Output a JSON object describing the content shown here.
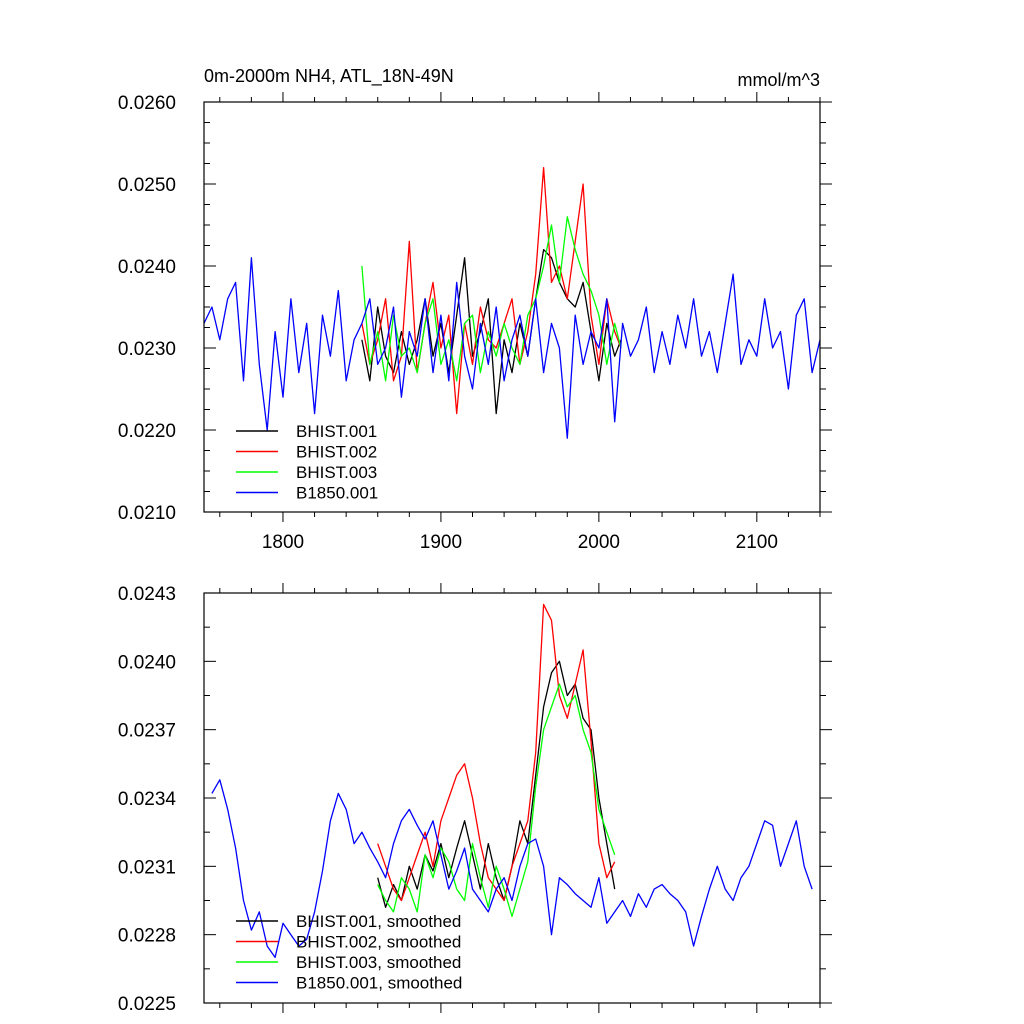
{
  "chart_data": [
    {
      "type": "line",
      "title": "0m-2000m NH4, ATL_18N-49N",
      "units": "mmol/m^3",
      "xlabel": "",
      "ylabel": "",
      "xlim": [
        1750,
        2140
      ],
      "ylim": [
        0.021,
        0.026
      ],
      "xticks": [
        1800,
        1900,
        2000,
        2100
      ],
      "xtick_labels": [
        "1800",
        "1900",
        "2000",
        "2100"
      ],
      "yticks": [
        0.021,
        0.022,
        0.023,
        0.024,
        0.025,
        0.026
      ],
      "ytick_labels": [
        "0.0210",
        "0.0220",
        "0.0230",
        "0.0240",
        "0.0250",
        "0.0260"
      ],
      "legend_position": "bottom-left",
      "series": [
        {
          "name": "BHIST.001",
          "color": "#000000",
          "x": [
            1850,
            1855,
            1860,
            1865,
            1870,
            1875,
            1880,
            1885,
            1890,
            1895,
            1900,
            1905,
            1910,
            1915,
            1920,
            1925,
            1930,
            1935,
            1940,
            1945,
            1950,
            1955,
            1960,
            1965,
            1970,
            1975,
            1980,
            1985,
            1990,
            1995,
            2000,
            2005,
            2010,
            2014
          ],
          "y": [
            0.0231,
            0.0226,
            0.0235,
            0.0229,
            0.0227,
            0.0232,
            0.0228,
            0.0231,
            0.0236,
            0.0229,
            0.0233,
            0.0227,
            0.0234,
            0.0241,
            0.0229,
            0.0232,
            0.0236,
            0.0222,
            0.0231,
            0.0227,
            0.0233,
            0.0229,
            0.0236,
            0.0242,
            0.0241,
            0.0238,
            0.0236,
            0.0235,
            0.0238,
            0.0232,
            0.0226,
            0.0233,
            0.0229,
            0.0231
          ]
        },
        {
          "name": "BHIST.002",
          "color": "#ff0000",
          "x": [
            1850,
            1855,
            1860,
            1865,
            1870,
            1875,
            1880,
            1885,
            1890,
            1895,
            1900,
            1905,
            1910,
            1915,
            1920,
            1925,
            1930,
            1935,
            1940,
            1945,
            1950,
            1955,
            1960,
            1965,
            1970,
            1975,
            1980,
            1985,
            1990,
            1995,
            2000,
            2005,
            2010,
            2014
          ],
          "y": [
            0.0233,
            0.0228,
            0.0231,
            0.0236,
            0.0226,
            0.0229,
            0.0243,
            0.0227,
            0.0233,
            0.0238,
            0.023,
            0.0234,
            0.0222,
            0.0233,
            0.0228,
            0.0235,
            0.0231,
            0.023,
            0.0233,
            0.0236,
            0.0228,
            0.0232,
            0.0239,
            0.0252,
            0.0238,
            0.024,
            0.0236,
            0.0243,
            0.025,
            0.0234,
            0.0228,
            0.0236,
            0.0232,
            0.023
          ]
        },
        {
          "name": "BHIST.003",
          "color": "#00ff00",
          "x": [
            1850,
            1855,
            1860,
            1865,
            1870,
            1875,
            1880,
            1885,
            1890,
            1895,
            1900,
            1905,
            1910,
            1915,
            1920,
            1925,
            1930,
            1935,
            1940,
            1945,
            1950,
            1955,
            1960,
            1965,
            1970,
            1975,
            1980,
            1985,
            1990,
            1995,
            2000,
            2005,
            2010,
            2014
          ],
          "y": [
            0.024,
            0.0228,
            0.0232,
            0.0226,
            0.0234,
            0.0229,
            0.023,
            0.0227,
            0.0233,
            0.0236,
            0.0228,
            0.0231,
            0.0226,
            0.0233,
            0.0234,
            0.0227,
            0.0232,
            0.0229,
            0.0233,
            0.023,
            0.0228,
            0.0234,
            0.0236,
            0.024,
            0.0245,
            0.0238,
            0.0246,
            0.0242,
            0.0239,
            0.0237,
            0.0234,
            0.0228,
            0.0233,
            0.023
          ]
        },
        {
          "name": "B1850.001",
          "color": "#0000ff",
          "x": [
            1750,
            1755,
            1760,
            1765,
            1770,
            1775,
            1780,
            1785,
            1790,
            1795,
            1800,
            1805,
            1810,
            1815,
            1820,
            1825,
            1830,
            1835,
            1840,
            1845,
            1850,
            1855,
            1860,
            1865,
            1870,
            1875,
            1880,
            1885,
            1890,
            1895,
            1900,
            1905,
            1910,
            1915,
            1920,
            1925,
            1930,
            1935,
            1940,
            1945,
            1950,
            1955,
            1960,
            1965,
            1970,
            1975,
            1980,
            1985,
            1990,
            1995,
            2000,
            2005,
            2010,
            2015,
            2020,
            2025,
            2030,
            2035,
            2040,
            2045,
            2050,
            2055,
            2060,
            2065,
            2070,
            2075,
            2080,
            2085,
            2090,
            2095,
            2100,
            2105,
            2110,
            2115,
            2120,
            2125,
            2130,
            2135,
            2140
          ],
          "y": [
            0.0233,
            0.0235,
            0.0231,
            0.0236,
            0.0238,
            0.0226,
            0.0241,
            0.0228,
            0.022,
            0.0232,
            0.0224,
            0.0236,
            0.0227,
            0.0233,
            0.0222,
            0.0234,
            0.0229,
            0.0237,
            0.0226,
            0.0231,
            0.0233,
            0.0236,
            0.0228,
            0.023,
            0.0235,
            0.0224,
            0.0232,
            0.0229,
            0.0236,
            0.0227,
            0.0234,
            0.0226,
            0.0238,
            0.0229,
            0.0225,
            0.0233,
            0.0228,
            0.0235,
            0.0226,
            0.0231,
            0.0234,
            0.0229,
            0.0236,
            0.0227,
            0.0233,
            0.023,
            0.0219,
            0.0234,
            0.0228,
            0.0232,
            0.023,
            0.0236,
            0.0221,
            0.0233,
            0.0229,
            0.0231,
            0.0235,
            0.0227,
            0.0232,
            0.0228,
            0.0234,
            0.023,
            0.0236,
            0.0229,
            0.0232,
            0.0227,
            0.0233,
            0.0239,
            0.0228,
            0.0231,
            0.0229,
            0.0236,
            0.023,
            0.0232,
            0.0225,
            0.0234,
            0.0236,
            0.0227,
            0.0231
          ]
        }
      ]
    },
    {
      "type": "line",
      "title": "",
      "xlabel": "",
      "ylabel": "",
      "xlim": [
        1750,
        2140
      ],
      "ylim": [
        0.0225,
        0.0243
      ],
      "xticks": [
        1800,
        1900,
        2000,
        2100
      ],
      "xtick_labels": [],
      "yticks": [
        0.0225,
        0.0228,
        0.0231,
        0.0234,
        0.0237,
        0.024,
        0.0243
      ],
      "ytick_labels": [
        "0.0225",
        "0.0228",
        "0.0231",
        "0.0234",
        "0.0237",
        "0.0240",
        "0.0243"
      ],
      "legend_position": "bottom-left",
      "series": [
        {
          "name": "BHIST.001, smoothed",
          "color": "#000000",
          "x": [
            1860,
            1865,
            1870,
            1875,
            1880,
            1885,
            1890,
            1895,
            1900,
            1905,
            1910,
            1915,
            1920,
            1925,
            1930,
            1935,
            1940,
            1945,
            1950,
            1955,
            1960,
            1965,
            1970,
            1975,
            1980,
            1985,
            1990,
            1995,
            2000,
            2005,
            2010
          ],
          "y": [
            0.02305,
            0.02292,
            0.02302,
            0.02295,
            0.0231,
            0.023,
            0.02315,
            0.02308,
            0.0232,
            0.02305,
            0.02318,
            0.0233,
            0.02315,
            0.023,
            0.0232,
            0.02305,
            0.02295,
            0.0231,
            0.0233,
            0.0232,
            0.0235,
            0.0238,
            0.02395,
            0.024,
            0.02385,
            0.0239,
            0.02375,
            0.0237,
            0.0234,
            0.0232,
            0.023
          ]
        },
        {
          "name": "BHIST.002, smoothed",
          "color": "#ff0000",
          "x": [
            1860,
            1865,
            1870,
            1875,
            1880,
            1885,
            1890,
            1895,
            1900,
            1905,
            1910,
            1915,
            1920,
            1925,
            1930,
            1935,
            1940,
            1945,
            1950,
            1955,
            1960,
            1965,
            1970,
            1975,
            1980,
            1985,
            1990,
            1995,
            2000,
            2005,
            2010
          ],
          "y": [
            0.0232,
            0.0231,
            0.023,
            0.02295,
            0.02305,
            0.02315,
            0.02325,
            0.0231,
            0.0233,
            0.0234,
            0.0235,
            0.02355,
            0.0234,
            0.0232,
            0.02305,
            0.023,
            0.02295,
            0.0231,
            0.0232,
            0.0233,
            0.0236,
            0.02425,
            0.02418,
            0.02385,
            0.02375,
            0.0239,
            0.02405,
            0.02365,
            0.0232,
            0.02305,
            0.02312
          ]
        },
        {
          "name": "BHIST.003, smoothed",
          "color": "#00ff00",
          "x": [
            1860,
            1865,
            1870,
            1875,
            1880,
            1885,
            1890,
            1895,
            1900,
            1905,
            1910,
            1915,
            1920,
            1925,
            1930,
            1935,
            1940,
            1945,
            1950,
            1955,
            1960,
            1965,
            1970,
            1975,
            1980,
            1985,
            1990,
            1995,
            2000,
            2005,
            2010
          ],
          "y": [
            0.02302,
            0.02295,
            0.0229,
            0.02305,
            0.023,
            0.0229,
            0.02315,
            0.02305,
            0.02318,
            0.02312,
            0.023,
            0.02295,
            0.0232,
            0.02305,
            0.02292,
            0.0231,
            0.023,
            0.02288,
            0.023,
            0.02312,
            0.02345,
            0.0237,
            0.0238,
            0.0239,
            0.0238,
            0.02385,
            0.0237,
            0.0236,
            0.02335,
            0.02325,
            0.02315
          ]
        },
        {
          "name": "B1850.001, smoothed",
          "color": "#0000ff",
          "x": [
            1755,
            1760,
            1765,
            1770,
            1775,
            1780,
            1785,
            1790,
            1795,
            1800,
            1805,
            1810,
            1815,
            1820,
            1825,
            1830,
            1835,
            1840,
            1845,
            1850,
            1855,
            1860,
            1865,
            1870,
            1875,
            1880,
            1885,
            1890,
            1895,
            1900,
            1905,
            1910,
            1915,
            1920,
            1925,
            1930,
            1935,
            1940,
            1945,
            1950,
            1955,
            1960,
            1965,
            1970,
            1975,
            1980,
            1985,
            1990,
            1995,
            2000,
            2005,
            2010,
            2015,
            2020,
            2025,
            2030,
            2035,
            2040,
            2045,
            2050,
            2055,
            2060,
            2065,
            2070,
            2075,
            2080,
            2085,
            2090,
            2095,
            2100,
            2105,
            2110,
            2115,
            2120,
            2125,
            2130,
            2135
          ],
          "y": [
            0.02342,
            0.02348,
            0.02335,
            0.02318,
            0.02295,
            0.02282,
            0.0229,
            0.02275,
            0.0227,
            0.02285,
            0.0228,
            0.02275,
            0.02278,
            0.0229,
            0.02308,
            0.0233,
            0.02342,
            0.02335,
            0.0232,
            0.02325,
            0.02318,
            0.02312,
            0.02305,
            0.0232,
            0.0233,
            0.02335,
            0.02328,
            0.02322,
            0.0233,
            0.02315,
            0.023,
            0.02308,
            0.02318,
            0.023,
            0.02295,
            0.0229,
            0.023,
            0.02305,
            0.02295,
            0.0231,
            0.0232,
            0.02322,
            0.0231,
            0.0228,
            0.02305,
            0.02302,
            0.02298,
            0.02295,
            0.02292,
            0.02305,
            0.02285,
            0.0229,
            0.02295,
            0.02288,
            0.02298,
            0.02292,
            0.023,
            0.02302,
            0.02298,
            0.02295,
            0.0229,
            0.02275,
            0.02288,
            0.023,
            0.0231,
            0.023,
            0.02295,
            0.02305,
            0.0231,
            0.0232,
            0.0233,
            0.02328,
            0.0231,
            0.0232,
            0.0233,
            0.0231,
            0.023
          ]
        }
      ]
    }
  ]
}
